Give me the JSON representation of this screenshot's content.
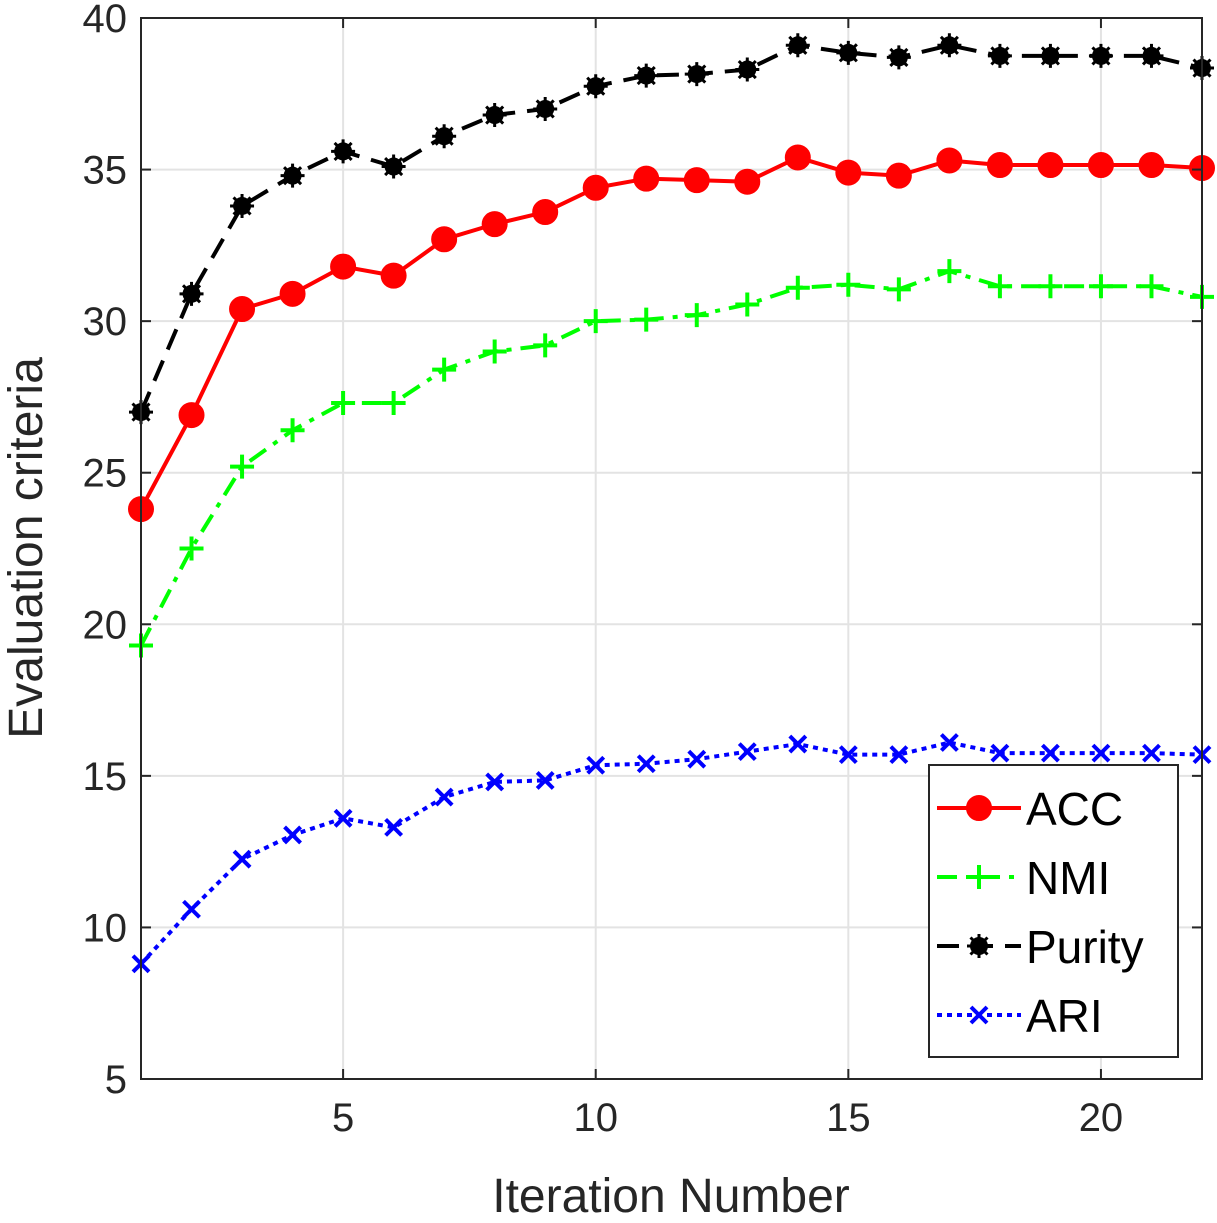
{
  "chart_data": {
    "type": "line",
    "title": "",
    "xlabel": "Iteration Number",
    "ylabel": "Evaluation criteria",
    "xlim": [
      1,
      22
    ],
    "ylim": [
      5,
      40
    ],
    "xticks": [
      5,
      10,
      15,
      20
    ],
    "yticks": [
      5,
      10,
      15,
      20,
      25,
      30,
      35,
      40
    ],
    "grid": true,
    "legend_position": "bottom-right",
    "x": [
      1,
      2,
      3,
      4,
      5,
      6,
      7,
      8,
      9,
      10,
      11,
      12,
      13,
      14,
      15,
      16,
      17,
      18,
      19,
      20,
      21,
      22
    ],
    "series": [
      {
        "name": "ACC",
        "color": "#ff0000",
        "line_style": "solid",
        "marker": "circle",
        "values": [
          23.8,
          26.9,
          30.4,
          30.9,
          31.8,
          31.5,
          32.7,
          33.2,
          33.6,
          34.4,
          34.7,
          34.65,
          34.6,
          35.4,
          34.9,
          34.8,
          35.3,
          35.15,
          35.15,
          35.15,
          35.15,
          35.05
        ]
      },
      {
        "name": "NMI",
        "color": "#00ff00",
        "line_style": "dashdot",
        "marker": "plus",
        "values": [
          19.3,
          22.5,
          25.2,
          26.4,
          27.3,
          27.3,
          28.4,
          29.0,
          29.2,
          30.0,
          30.05,
          30.2,
          30.55,
          31.1,
          31.2,
          31.05,
          31.65,
          31.15,
          31.15,
          31.15,
          31.15,
          30.8
        ]
      },
      {
        "name": "Purity",
        "color": "#000000",
        "line_style": "dashed",
        "marker": "asterisk",
        "values": [
          27.0,
          30.9,
          33.8,
          34.8,
          35.6,
          35.1,
          36.1,
          36.8,
          37.0,
          37.75,
          38.1,
          38.15,
          38.3,
          39.1,
          38.85,
          38.7,
          39.1,
          38.75,
          38.75,
          38.75,
          38.75,
          38.35
        ]
      },
      {
        "name": "ARI",
        "color": "#0000ff",
        "line_style": "dotted",
        "marker": "x",
        "values": [
          8.8,
          10.6,
          12.25,
          13.05,
          13.6,
          13.3,
          14.3,
          14.8,
          14.85,
          15.35,
          15.4,
          15.55,
          15.8,
          16.05,
          15.7,
          15.7,
          16.1,
          15.75,
          15.75,
          15.75,
          15.75,
          15.7
        ]
      }
    ]
  }
}
